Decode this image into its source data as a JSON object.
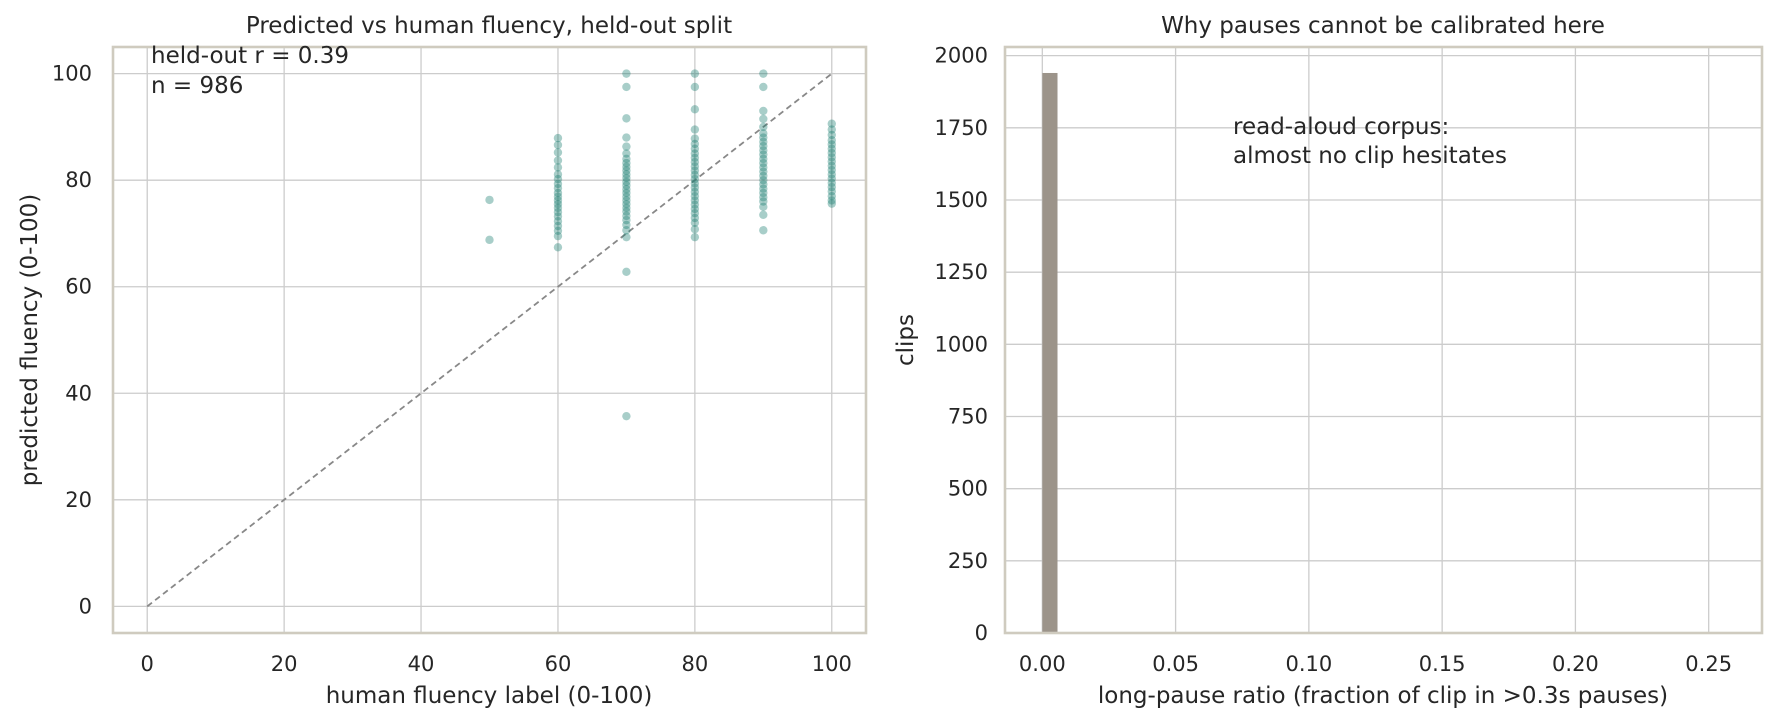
{
  "chart_data": [
    {
      "type": "scatter",
      "title": "Predicted vs human fluency, held-out split",
      "xlabel": "human fluency label (0-100)",
      "ylabel": "predicted fluency (0-100)",
      "xlim": [
        -5,
        105
      ],
      "ylim": [
        -5,
        105
      ],
      "xticks": [
        0,
        20,
        40,
        60,
        80,
        100
      ],
      "yticks": [
        0,
        20,
        40,
        60,
        80,
        100
      ],
      "grid": true,
      "reference_line": {
        "style": "dashed",
        "from": [
          0,
          0
        ],
        "to": [
          100,
          100
        ],
        "color": "#888888"
      },
      "point_color": "#1b7d72",
      "annotations": [
        "held-out r = 0.39",
        "n = 986"
      ],
      "series": [
        {
          "points": [
            [
              50,
              76.3
            ],
            [
              50,
              68.8
            ],
            [
              60,
              87.9
            ],
            [
              60,
              86.6
            ],
            [
              60,
              85.2
            ],
            [
              60,
              83.7
            ],
            [
              60,
              82.4
            ],
            [
              60,
              81.1
            ],
            [
              60,
              80.2
            ],
            [
              60,
              79.3
            ],
            [
              60,
              78.5
            ],
            [
              60,
              77.6
            ],
            [
              60,
              76.9
            ],
            [
              60,
              76.2
            ],
            [
              60,
              75.5
            ],
            [
              60,
              74.8
            ],
            [
              60,
              74.0
            ],
            [
              60,
              73.2
            ],
            [
              60,
              72.3
            ],
            [
              60,
              71.4
            ],
            [
              60,
              70.5
            ],
            [
              60,
              69.5
            ],
            [
              60,
              67.4
            ],
            [
              70,
              100
            ],
            [
              70,
              97.5
            ],
            [
              70,
              91.6
            ],
            [
              70,
              88.0
            ],
            [
              70,
              86.3
            ],
            [
              70,
              85.0
            ],
            [
              70,
              84.0
            ],
            [
              70,
              83.2
            ],
            [
              70,
              82.5
            ],
            [
              70,
              81.8
            ],
            [
              70,
              81.1
            ],
            [
              70,
              80.4
            ],
            [
              70,
              79.7
            ],
            [
              70,
              79.0
            ],
            [
              70,
              78.3
            ],
            [
              70,
              77.6
            ],
            [
              70,
              76.9
            ],
            [
              70,
              76.2
            ],
            [
              70,
              75.5
            ],
            [
              70,
              74.8
            ],
            [
              70,
              74.1
            ],
            [
              70,
              73.3
            ],
            [
              70,
              72.5
            ],
            [
              70,
              71.6
            ],
            [
              70,
              70.6
            ],
            [
              70,
              69.3
            ],
            [
              70,
              62.8
            ],
            [
              70,
              35.7
            ],
            [
              80,
              100
            ],
            [
              80,
              97.5
            ],
            [
              80,
              93.3
            ],
            [
              80,
              89.5
            ],
            [
              80,
              87.8
            ],
            [
              80,
              86.8
            ],
            [
              80,
              85.9
            ],
            [
              80,
              85.0
            ],
            [
              80,
              84.2
            ],
            [
              80,
              83.4
            ],
            [
              80,
              82.6
            ],
            [
              80,
              81.8
            ],
            [
              80,
              81.0
            ],
            [
              80,
              80.2
            ],
            [
              80,
              79.4
            ],
            [
              80,
              78.6
            ],
            [
              80,
              77.8
            ],
            [
              80,
              77.0
            ],
            [
              80,
              76.2
            ],
            [
              80,
              75.4
            ],
            [
              80,
              74.6
            ],
            [
              80,
              73.8
            ],
            [
              80,
              72.9
            ],
            [
              80,
              72.0
            ],
            [
              80,
              70.8
            ],
            [
              80,
              69.3
            ],
            [
              90,
              100
            ],
            [
              90,
              97.5
            ],
            [
              90,
              93.0
            ],
            [
              90,
              91.5
            ],
            [
              90,
              90.0
            ],
            [
              90,
              88.8
            ],
            [
              90,
              88.0
            ],
            [
              90,
              87.2
            ],
            [
              90,
              86.4
            ],
            [
              90,
              85.6
            ],
            [
              90,
              84.8
            ],
            [
              90,
              84.0
            ],
            [
              90,
              83.2
            ],
            [
              90,
              82.4
            ],
            [
              90,
              81.6
            ],
            [
              90,
              80.8
            ],
            [
              90,
              80.0
            ],
            [
              90,
              79.2
            ],
            [
              90,
              78.4
            ],
            [
              90,
              77.6
            ],
            [
              90,
              76.8
            ],
            [
              90,
              76.0
            ],
            [
              90,
              75.0
            ],
            [
              90,
              73.5
            ],
            [
              90,
              70.6
            ],
            [
              100,
              90.6
            ],
            [
              100,
              89.5
            ],
            [
              100,
              88.5
            ],
            [
              100,
              87.5
            ],
            [
              100,
              86.7
            ],
            [
              100,
              85.9
            ],
            [
              100,
              85.1
            ],
            [
              100,
              84.3
            ],
            [
              100,
              83.5
            ],
            [
              100,
              82.7
            ],
            [
              100,
              81.9
            ],
            [
              100,
              81.1
            ],
            [
              100,
              80.3
            ],
            [
              100,
              79.5
            ],
            [
              100,
              78.7
            ],
            [
              100,
              77.9
            ],
            [
              100,
              77.0
            ],
            [
              100,
              76.2
            ],
            [
              100,
              75.6
            ]
          ]
        }
      ]
    },
    {
      "type": "bar",
      "title": "Why pauses cannot be calibrated here",
      "xlabel": "long-pause ratio (fraction of clip in >0.3s pauses)",
      "ylabel": "clips",
      "xlim": [
        -0.014,
        0.27
      ],
      "ylim": [
        0,
        2030
      ],
      "xticks": [
        "0.00",
        "0.05",
        "0.10",
        "0.15",
        "0.20",
        "0.25"
      ],
      "yticks": [
        0,
        250,
        500,
        750,
        1000,
        1250,
        1500,
        1750,
        2000
      ],
      "grid": true,
      "bar_color": "#9c948a",
      "bins": [
        {
          "x0": 0.0,
          "x1": 0.0057,
          "count": 1940
        }
      ],
      "annotations": [
        "read-aloud corpus:",
        "almost no clip hesitates"
      ]
    }
  ]
}
